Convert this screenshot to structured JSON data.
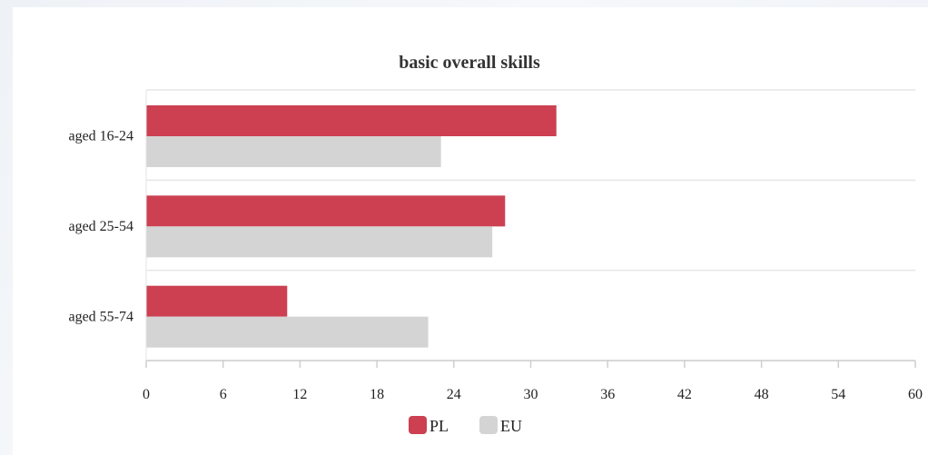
{
  "chart_data": {
    "type": "bar",
    "orientation": "horizontal",
    "title": "basic overall skills",
    "categories": [
      "aged 16-24",
      "aged 25-54",
      "aged 55-74"
    ],
    "series": [
      {
        "name": "PL",
        "values": [
          32,
          28,
          11
        ],
        "color": "#cc4052"
      },
      {
        "name": "EU",
        "values": [
          23,
          27,
          22
        ],
        "color": "#d4d4d4"
      }
    ],
    "xlim": [
      0,
      60
    ],
    "x_ticks": [
      "0",
      "6",
      "12",
      "18",
      "24",
      "30",
      "36",
      "42",
      "48",
      "54",
      "60"
    ],
    "grid": true,
    "legend": "bottom-center"
  }
}
